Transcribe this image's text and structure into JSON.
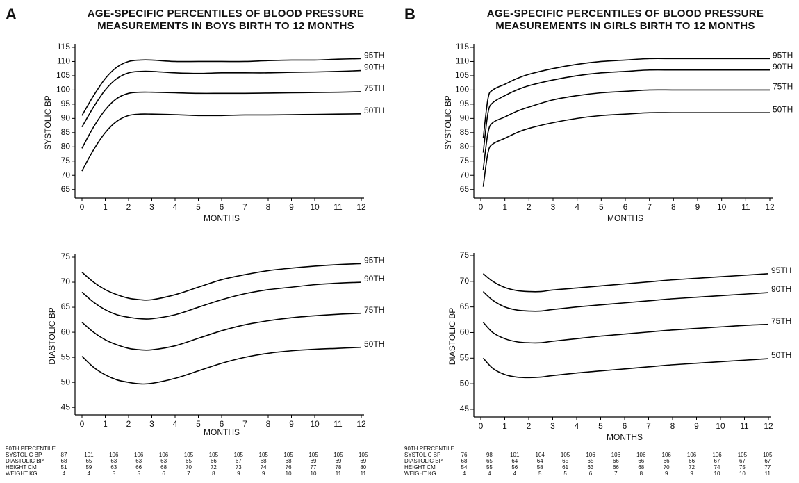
{
  "panels": [
    {
      "letter": "A",
      "title": [
        "AGE-SPECIFIC PERCENTILES OF BLOOD PRESSURE",
        "MEASUREMENTS IN BOYS BIRTH TO 12 MONTHS"
      ],
      "table": {
        "header": "90TH PERCENTILE",
        "rows": [
          [
            "SYSTOLIC BP",
            "87",
            "101",
            "106",
            "106",
            "106",
            "105",
            "105",
            "105",
            "105",
            "105",
            "105",
            "105",
            "105"
          ],
          [
            "DIASTOLIC BP",
            "68",
            "65",
            "63",
            "63",
            "63",
            "65",
            "66",
            "67",
            "68",
            "68",
            "69",
            "69",
            "69"
          ],
          [
            "HEIGHT CM",
            "51",
            "59",
            "63",
            "66",
            "68",
            "70",
            "72",
            "73",
            "74",
            "76",
            "77",
            "78",
            "80"
          ],
          [
            "WEIGHT KG",
            "4",
            "4",
            "5",
            "5",
            "6",
            "7",
            "8",
            "9",
            "9",
            "10",
            "10",
            "11",
            "11"
          ]
        ]
      }
    },
    {
      "letter": "B",
      "title": [
        "AGE-SPECIFIC PERCENTILES OF BLOOD PRESSURE",
        "MEASUREMENTS IN GIRLS BIRTH TO 12 MONTHS"
      ],
      "table": {
        "header": "90TH PERCENTILE",
        "rows": [
          [
            "SYSTOLIC BP",
            "76",
            "98",
            "101",
            "104",
            "105",
            "106",
            "106",
            "106",
            "106",
            "106",
            "106",
            "105",
            "105"
          ],
          [
            "DIASTOLIC BP",
            "68",
            "65",
            "64",
            "64",
            "65",
            "65",
            "66",
            "66",
            "66",
            "66",
            "67",
            "67",
            "67"
          ],
          [
            "HEIGHT CM",
            "54",
            "55",
            "56",
            "58",
            "61",
            "63",
            "66",
            "68",
            "70",
            "72",
            "74",
            "75",
            "77"
          ],
          [
            "WEIGHT KG",
            "4",
            "4",
            "4",
            "5",
            "5",
            "6",
            "7",
            "8",
            "9",
            "9",
            "10",
            "10",
            "11"
          ]
        ]
      }
    }
  ],
  "chart_data": [
    {
      "type": "line",
      "xlabel": "MONTHS",
      "ylabel": "SYSTOLIC BP",
      "x": [
        0,
        0.5,
        1,
        1.5,
        2,
        2.5,
        3,
        4,
        5,
        6,
        7,
        8,
        9,
        10,
        11,
        12
      ],
      "xlim": [
        0,
        12
      ],
      "xticks": [
        0,
        1,
        2,
        3,
        4,
        5,
        6,
        7,
        8,
        9,
        10,
        11,
        12
      ],
      "ylim": [
        62,
        115
      ],
      "yticks": [
        65,
        70,
        75,
        80,
        85,
        90,
        95,
        100,
        105,
        110,
        115
      ],
      "series": [
        {
          "name": "95TH",
          "color": "#000000",
          "values": [
            91,
            98,
            104,
            108,
            110,
            110.5,
            110.5,
            110,
            110,
            110,
            110,
            110.3,
            110.5,
            110.5,
            110.8,
            111
          ]
        },
        {
          "name": "90TH",
          "color": "#000000",
          "values": [
            87,
            94,
            100,
            104,
            106,
            106.5,
            106.5,
            106,
            105.8,
            106,
            106,
            106,
            106.2,
            106.3,
            106.5,
            106.8
          ]
        },
        {
          "name": "75TH",
          "color": "#000000",
          "values": [
            79.5,
            87,
            93,
            97,
            98.8,
            99.2,
            99.2,
            99,
            98.8,
            98.8,
            98.8,
            98.9,
            99,
            99.1,
            99.2,
            99.4
          ]
        },
        {
          "name": "50TH",
          "color": "#000000",
          "values": [
            71.5,
            79,
            85,
            89,
            91,
            91.5,
            91.5,
            91.3,
            91,
            91,
            91.2,
            91.2,
            91.3,
            91.4,
            91.5,
            91.6
          ]
        }
      ]
    },
    {
      "type": "line",
      "xlabel": "MONTHS",
      "ylabel": "DIASTOLIC BP",
      "x": [
        0,
        0.5,
        1,
        1.5,
        2,
        2.5,
        3,
        4,
        5,
        6,
        7,
        8,
        9,
        10,
        11,
        12
      ],
      "xlim": [
        0,
        12
      ],
      "xticks": [
        0,
        1,
        2,
        3,
        4,
        5,
        6,
        7,
        8,
        9,
        10,
        11,
        12
      ],
      "ylim": [
        43.5,
        75
      ],
      "yticks": [
        45,
        50,
        55,
        60,
        65,
        70,
        75
      ],
      "series": [
        {
          "name": "95TH",
          "color": "#000000",
          "values": [
            72,
            70,
            68.5,
            67.5,
            66.8,
            66.5,
            66.5,
            67.5,
            69,
            70.5,
            71.5,
            72.3,
            72.8,
            73.2,
            73.5,
            73.7
          ]
        },
        {
          "name": "90TH",
          "color": "#000000",
          "values": [
            68,
            66,
            64.5,
            63.5,
            63,
            62.7,
            62.7,
            63.5,
            65,
            66.5,
            67.7,
            68.5,
            69,
            69.5,
            69.8,
            70
          ]
        },
        {
          "name": "75TH",
          "color": "#000000",
          "values": [
            62,
            60,
            58.5,
            57.5,
            56.8,
            56.5,
            56.5,
            57.3,
            58.8,
            60.3,
            61.5,
            62.3,
            62.9,
            63.3,
            63.6,
            63.8
          ]
        },
        {
          "name": "50TH",
          "color": "#000000",
          "values": [
            55.2,
            53,
            51.5,
            50.5,
            50,
            49.7,
            49.8,
            50.8,
            52.3,
            53.8,
            55,
            55.8,
            56.3,
            56.6,
            56.8,
            57
          ]
        }
      ]
    },
    {
      "type": "line",
      "xlabel": "MONTHS",
      "ylabel": "SYSTOLIC BP",
      "x": [
        0.1,
        0.3,
        0.5,
        1,
        1.5,
        2,
        3,
        4,
        5,
        6,
        7,
        8,
        9,
        10,
        11,
        12
      ],
      "xlim": [
        0,
        12
      ],
      "xticks": [
        0,
        1,
        2,
        3,
        4,
        5,
        6,
        7,
        8,
        9,
        10,
        11,
        12
      ],
      "ylim": [
        62,
        115
      ],
      "yticks": [
        65,
        70,
        75,
        80,
        85,
        90,
        95,
        100,
        105,
        110,
        115
      ],
      "series": [
        {
          "name": "95TH",
          "color": "#000000",
          "values": [
            83,
            97,
            100,
            102,
            104,
            105.5,
            107.5,
            109,
            110,
            110.5,
            111,
            111,
            111,
            111,
            111,
            111
          ]
        },
        {
          "name": "90TH",
          "color": "#000000",
          "values": [
            78,
            92,
            95.5,
            98,
            100,
            101.5,
            103.5,
            105,
            106,
            106.5,
            107,
            107,
            107,
            107,
            107,
            107
          ]
        },
        {
          "name": "75TH",
          "color": "#000000",
          "values": [
            72,
            85,
            88.5,
            90.5,
            92.5,
            94,
            96.5,
            98,
            99,
            99.5,
            100,
            100,
            100,
            100,
            100,
            100
          ]
        },
        {
          "name": "50TH",
          "color": "#000000",
          "values": [
            66,
            78,
            81,
            83,
            85,
            86.5,
            88.5,
            90,
            91,
            91.5,
            92,
            92,
            92,
            92,
            92,
            92
          ]
        }
      ]
    },
    {
      "type": "line",
      "xlabel": "MONTHS",
      "ylabel": "DIASTOLIC BP",
      "x": [
        0.1,
        0.5,
        1,
        1.5,
        2,
        2.5,
        3,
        4,
        5,
        6,
        7,
        8,
        9,
        10,
        11,
        12
      ],
      "xlim": [
        0,
        12
      ],
      "xticks": [
        0,
        1,
        2,
        3,
        4,
        5,
        6,
        7,
        8,
        9,
        10,
        11,
        12
      ],
      "ylim": [
        43.5,
        75
      ],
      "yticks": [
        45,
        50,
        55,
        60,
        65,
        70,
        75
      ],
      "series": [
        {
          "name": "95TH",
          "color": "#000000",
          "values": [
            71.5,
            70,
            68.8,
            68.2,
            68,
            68,
            68.3,
            68.7,
            69.1,
            69.5,
            69.9,
            70.3,
            70.6,
            70.9,
            71.2,
            71.5
          ]
        },
        {
          "name": "90TH",
          "color": "#000000",
          "values": [
            68,
            66.3,
            65,
            64.4,
            64.2,
            64.2,
            64.5,
            65,
            65.4,
            65.8,
            66.2,
            66.6,
            66.9,
            67.2,
            67.5,
            67.8
          ]
        },
        {
          "name": "75TH",
          "color": "#000000",
          "values": [
            62,
            60,
            58.8,
            58.2,
            58,
            58,
            58.3,
            58.8,
            59.3,
            59.7,
            60.1,
            60.5,
            60.8,
            61.1,
            61.4,
            61.6
          ]
        },
        {
          "name": "50TH",
          "color": "#000000",
          "values": [
            55,
            53,
            51.8,
            51.3,
            51.2,
            51.3,
            51.6,
            52.1,
            52.5,
            52.9,
            53.3,
            53.7,
            54,
            54.3,
            54.6,
            54.9
          ]
        }
      ]
    }
  ]
}
